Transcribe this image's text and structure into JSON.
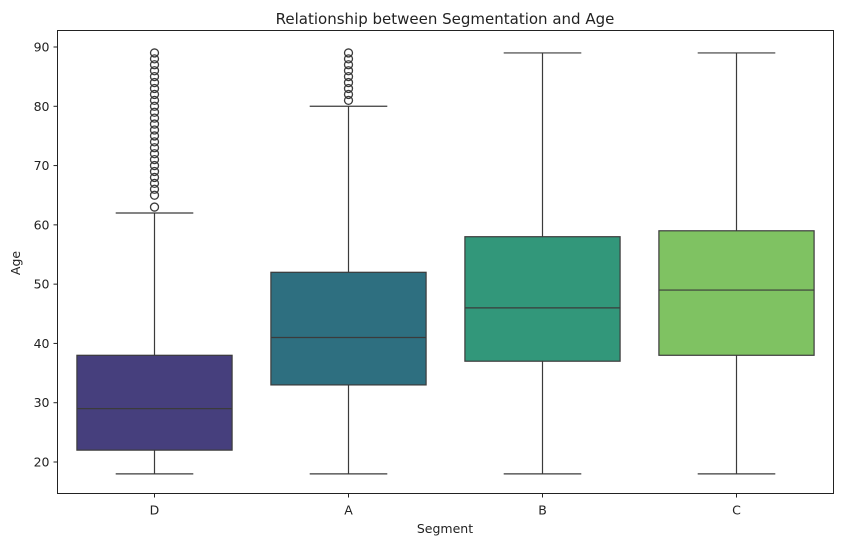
{
  "chart_data": {
    "type": "box",
    "title": "Relationship between Segmentation and Age",
    "xlabel": "Segment",
    "ylabel": "Age",
    "ylim": [
      15,
      91
    ],
    "yticks": [
      20,
      30,
      40,
      50,
      60,
      70,
      80,
      90
    ],
    "grid": false,
    "categories": [
      "D",
      "A",
      "B",
      "C"
    ],
    "boxes": [
      {
        "category": "D",
        "whisker_low": 18,
        "q1": 22,
        "median": 29,
        "q3": 38,
        "whisker_high": 62,
        "outliers": [
          63,
          65,
          66,
          67,
          68,
          69,
          70,
          71,
          72,
          73,
          74,
          75,
          76,
          77,
          78,
          79,
          80,
          81,
          82,
          83,
          84,
          85,
          86,
          87,
          88,
          89
        ],
        "color": "#463f7d"
      },
      {
        "category": "A",
        "whisker_low": 18,
        "q1": 33,
        "median": 41,
        "q3": 52,
        "whisker_high": 80,
        "outliers": [
          81,
          82,
          83,
          84,
          85,
          86,
          87,
          88,
          89
        ],
        "color": "#2e6f80"
      },
      {
        "category": "B",
        "whisker_low": 18,
        "q1": 37,
        "median": 46,
        "q3": 58,
        "whisker_high": 89,
        "outliers": [],
        "color": "#32977a"
      },
      {
        "category": "C",
        "whisker_low": 18,
        "q1": 38,
        "median": 49,
        "q3": 59,
        "whisker_high": 89,
        "outliers": [],
        "color": "#7fc262"
      }
    ]
  }
}
